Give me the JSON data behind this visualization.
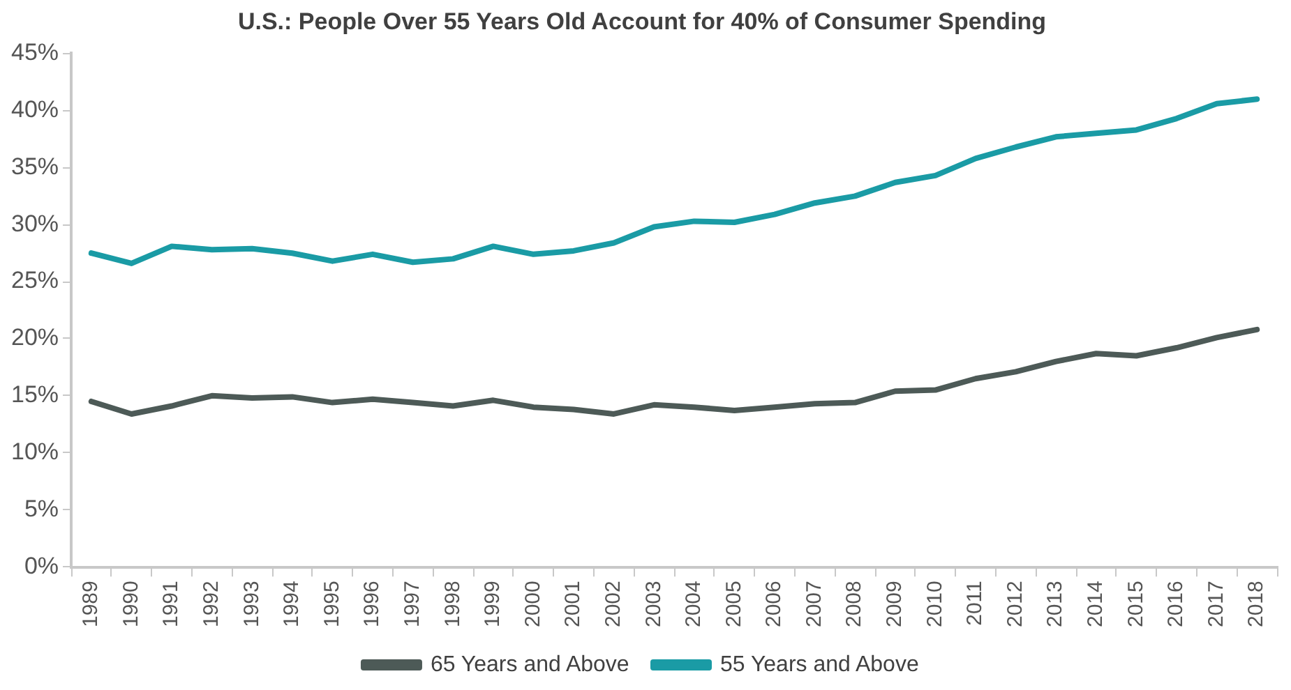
{
  "chart_data": {
    "type": "line",
    "title": "U.S.: People Over 55 Years Old Account for 40% of Consumer Spending",
    "categories": [
      "1989",
      "1990",
      "1991",
      "1992",
      "1993",
      "1994",
      "1995",
      "1996",
      "1997",
      "1998",
      "1999",
      "2000",
      "2001",
      "2002",
      "2003",
      "2004",
      "2005",
      "2006",
      "2007",
      "2008",
      "2009",
      "2010",
      "2011",
      "2012",
      "2013",
      "2014",
      "2015",
      "2016",
      "2017",
      "2018"
    ],
    "series": [
      {
        "name": "65 Years and Above",
        "color": "#4d5a57",
        "values": [
          14.5,
          13.4,
          14.1,
          15.0,
          14.8,
          14.9,
          14.4,
          14.7,
          14.4,
          14.1,
          14.6,
          14.0,
          13.8,
          13.4,
          14.2,
          14.0,
          13.7,
          14.0,
          14.3,
          14.4,
          15.4,
          15.5,
          16.5,
          17.1,
          18.0,
          18.7,
          18.5,
          19.2,
          20.1,
          20.8
        ]
      },
      {
        "name": "55 Years and Above",
        "color": "#1a9ba5",
        "values": [
          27.5,
          26.6,
          28.1,
          27.8,
          27.9,
          27.5,
          26.8,
          27.4,
          26.7,
          27.0,
          28.1,
          27.4,
          27.7,
          28.4,
          29.8,
          30.3,
          30.2,
          30.9,
          31.9,
          32.5,
          33.7,
          34.3,
          35.8,
          36.8,
          37.7,
          38.0,
          38.3,
          39.3,
          40.6,
          41.0
        ]
      }
    ],
    "ylim": [
      0,
      45
    ],
    "yticks": [
      {
        "value": 0,
        "label": "0%"
      },
      {
        "value": 5,
        "label": "5%"
      },
      {
        "value": 10,
        "label": "10%"
      },
      {
        "value": 15,
        "label": "15%"
      },
      {
        "value": 20,
        "label": "20%"
      },
      {
        "value": 25,
        "label": "25%"
      },
      {
        "value": 30,
        "label": "30%"
      },
      {
        "value": 35,
        "label": "35%"
      },
      {
        "value": 40,
        "label": "40%"
      },
      {
        "value": 45,
        "label": "45%"
      }
    ],
    "grid": false,
    "legend": "bottom",
    "marker": "none",
    "line_style": "solid"
  }
}
